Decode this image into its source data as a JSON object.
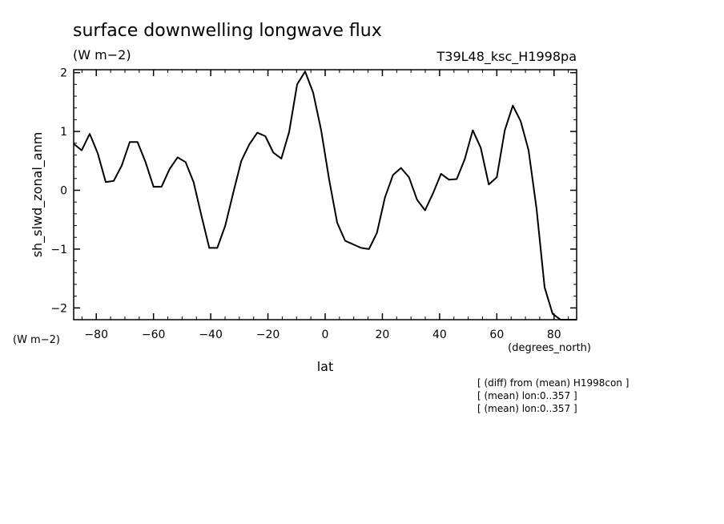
{
  "chart_data": {
    "type": "line",
    "title": "surface downwelling longwave flux",
    "units": "(W m−2)",
    "run_label": "T39L48_ksc_H1998pa",
    "ylabel": "sh_slwd_zonal_anm",
    "y_units": "(W m−2)",
    "xlabel": "lat",
    "x_units": "(degrees_north)",
    "xlim": [
      -87.9,
      87.9
    ],
    "ylim": [
      -2.2,
      2.05
    ],
    "x_ticks": [
      -80,
      -60,
      -40,
      -20,
      0,
      20,
      40,
      60,
      80
    ],
    "x_tick_labels": [
      "−80",
      "−60",
      "−40",
      "−20",
      "0",
      "20",
      "40",
      "60",
      "80"
    ],
    "y_ticks": [
      2,
      1,
      0,
      -1,
      -2
    ],
    "y_tick_labels": [
      "2",
      "1",
      "0",
      "−1",
      "−2"
    ],
    "notes": [
      "[ (diff) from (mean) H1998con ]",
      "[ (mean) lon:0..357 ]",
      "[ (mean) lon:0..357 ]"
    ],
    "series": [
      {
        "x": [
          -87.9,
          -85.1,
          -82.3,
          -79.5,
          -76.7,
          -73.9,
          -71.1,
          -68.3,
          -65.6,
          -62.8,
          -60.0,
          -57.2,
          -54.4,
          -51.6,
          -48.8,
          -46.0,
          -43.3,
          -40.5,
          -37.7,
          -34.9,
          -32.1,
          -29.3,
          -26.5,
          -23.7,
          -20.9,
          -18.1,
          -15.3,
          -12.6,
          -9.8,
          -7.0,
          -4.2,
          -1.4,
          1.4,
          4.2,
          7.0,
          9.8,
          12.6,
          15.3,
          18.1,
          20.9,
          23.7,
          26.5,
          29.3,
          32.1,
          34.9,
          37.7,
          40.5,
          43.3,
          46.0,
          48.8,
          51.6,
          54.4,
          57.2,
          60.0,
          62.8,
          65.6,
          68.3,
          71.1,
          73.9,
          76.7,
          79.5,
          82.3,
          85.1,
          87.9
        ],
        "values": [
          0.79,
          0.68,
          0.96,
          0.63,
          0.14,
          0.16,
          0.42,
          0.82,
          0.82,
          0.48,
          0.06,
          0.06,
          0.36,
          0.56,
          0.48,
          0.14,
          -0.42,
          -0.98,
          -0.98,
          -0.6,
          -0.04,
          0.5,
          0.78,
          0.98,
          0.92,
          0.64,
          0.54,
          0.99,
          1.8,
          2.02,
          1.66,
          1.02,
          0.18,
          -0.55,
          -0.86,
          -0.92,
          -0.98,
          -1.0,
          -0.72,
          -0.12,
          0.26,
          0.38,
          0.22,
          -0.16,
          -0.34,
          -0.05,
          0.28,
          0.18,
          0.19,
          0.53,
          1.02,
          0.72,
          0.1,
          0.22,
          1.02,
          1.44,
          1.18,
          0.68,
          -0.32,
          -1.65,
          -2.1,
          -2.2,
          -2.2,
          -2.2
        ]
      }
    ]
  }
}
